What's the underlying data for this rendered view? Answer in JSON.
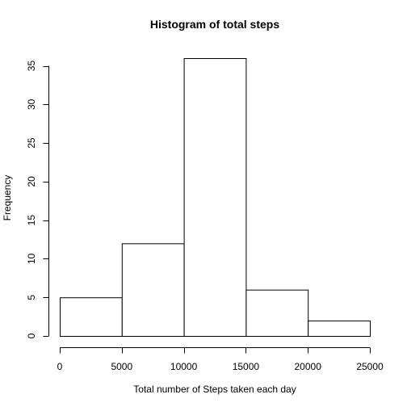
{
  "chart_data": {
    "type": "bar",
    "title": "Histogram of total steps",
    "xlabel": "Total number of Steps taken each day",
    "ylabel": "Frequency",
    "bins": [
      {
        "start": 0,
        "end": 5000,
        "value": 5
      },
      {
        "start": 5000,
        "end": 10000,
        "value": 12
      },
      {
        "start": 10000,
        "end": 15000,
        "value": 36
      },
      {
        "start": 15000,
        "end": 20000,
        "value": 6
      },
      {
        "start": 20000,
        "end": 25000,
        "value": 2
      }
    ],
    "xlim": [
      0,
      25000
    ],
    "ylim": [
      0,
      36
    ],
    "xticks": [
      0,
      5000,
      10000,
      15000,
      20000,
      25000
    ],
    "yticks": [
      0,
      5,
      10,
      15,
      20,
      25,
      30,
      35
    ],
    "grid": false
  }
}
